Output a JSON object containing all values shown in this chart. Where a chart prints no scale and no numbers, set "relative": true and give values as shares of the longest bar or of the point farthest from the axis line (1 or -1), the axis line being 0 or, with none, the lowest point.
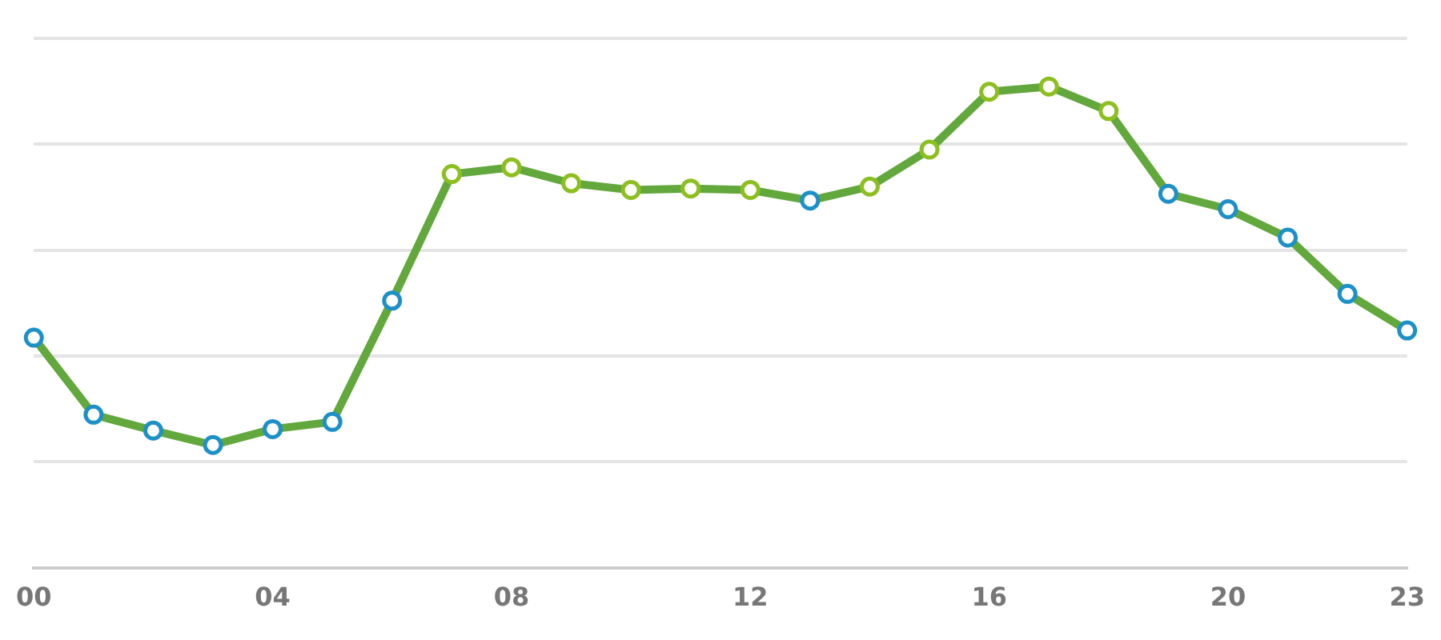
{
  "chart_data": {
    "type": "line",
    "relative": true,
    "grid": "y",
    "marker": "circle",
    "line_style": "solid",
    "categories": [
      "00",
      null,
      null,
      null,
      "04",
      null,
      null,
      null,
      "08",
      null,
      null,
      null,
      "12",
      null,
      null,
      null,
      "16",
      null,
      null,
      null,
      "20",
      null,
      null,
      "23"
    ],
    "series": [
      {
        "color": "#62a83c",
        "colors": [
          "#1e90c8",
          "#1e90c8",
          "#1e90c8",
          "#1e90c8",
          "#1e90c8",
          "#1e90c8",
          "#1e90c8",
          "#8cbf1f",
          "#8cbf1f",
          "#8cbf1f",
          "#8cbf1f",
          "#8cbf1f",
          "#8cbf1f",
          "#1e90c8",
          "#8cbf1f",
          "#8cbf1f",
          "#8cbf1f",
          "#8cbf1f",
          "#8cbf1f",
          "#1e90c8",
          "#1e90c8",
          "#1e90c8",
          "#1e90c8",
          "#1e90c8"
        ],
        "values": [
          0.478,
          0.318,
          0.285,
          0.255,
          0.288,
          0.303,
          0.555,
          0.818,
          0.832,
          0.799,
          0.785,
          0.788,
          0.785,
          0.763,
          0.792,
          0.869,
          0.989,
          1,
          0.949,
          0.777,
          0.745,
          0.686,
          0.569,
          0.493
        ]
      }
    ]
  }
}
